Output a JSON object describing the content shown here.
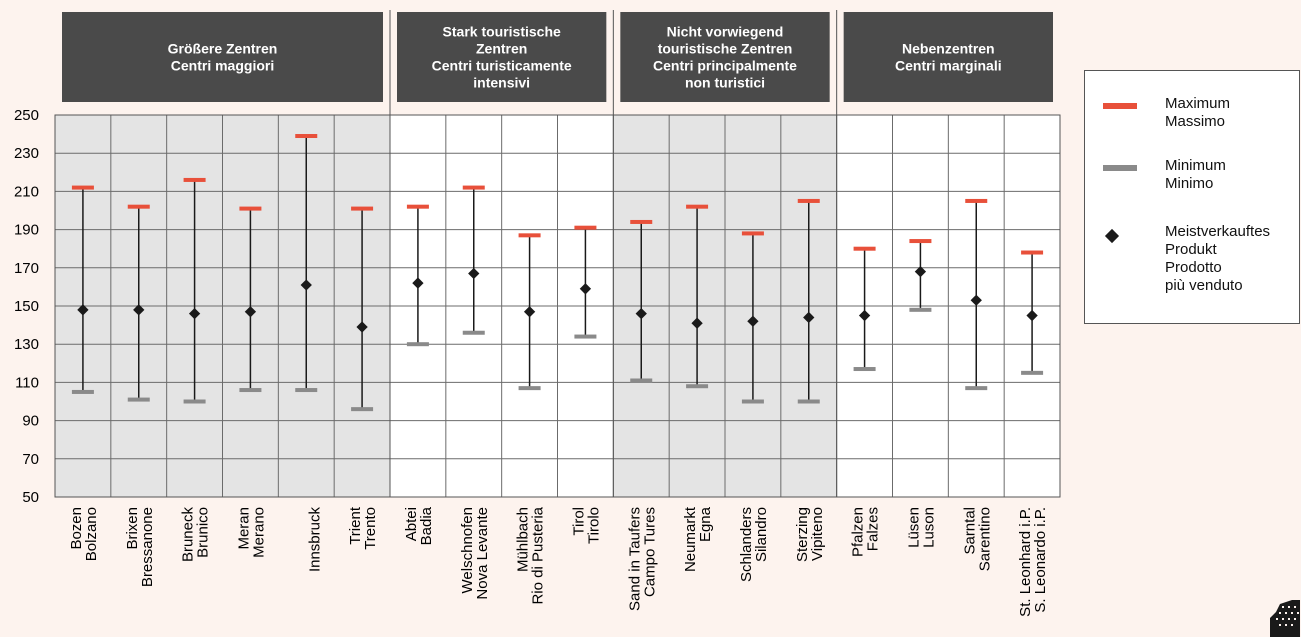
{
  "chart_data": {
    "type": "range",
    "ylim": [
      50,
      250
    ],
    "yticks": [
      50,
      70,
      90,
      110,
      130,
      150,
      170,
      190,
      210,
      230,
      250
    ],
    "groups": [
      {
        "lines": [
          "Größere Zentren",
          "Centri maggiori"
        ],
        "start": 0,
        "count": 6,
        "shaded": true
      },
      {
        "lines": [
          "Stark touristische",
          "Zentren",
          "Centri turisticamente",
          "intensivi"
        ],
        "start": 6,
        "count": 4,
        "shaded": false
      },
      {
        "lines": [
          "Nicht vorwiegend",
          "touristische Zentren",
          "Centri principalmente",
          "non turistici"
        ],
        "start": 10,
        "count": 4,
        "shaded": true
      },
      {
        "lines": [
          "Nebenzentren",
          "Centri marginali"
        ],
        "start": 14,
        "count": 4,
        "shaded": false
      }
    ],
    "categories": [
      {
        "line1": "Bozen",
        "line2": "Bolzano",
        "max": 212,
        "min": 105,
        "mode": 148
      },
      {
        "line1": "Brixen",
        "line2": "Bressanone",
        "max": 202,
        "min": 101,
        "mode": 148
      },
      {
        "line1": "Bruneck",
        "line2": "Brunico",
        "max": 216,
        "min": 100,
        "mode": 146
      },
      {
        "line1": "Meran",
        "line2": "Merano",
        "max": 201,
        "min": 106,
        "mode": 147
      },
      {
        "line1": "",
        "line2": "Innsbruck",
        "max": 239,
        "min": 106,
        "mode": 161
      },
      {
        "line1": "Trient",
        "line2": "Trento",
        "max": 201,
        "min": 96,
        "mode": 139
      },
      {
        "line1": "Abtei",
        "line2": "Badia",
        "max": 202,
        "min": 130,
        "mode": 162
      },
      {
        "line1": "Welschnofen",
        "line2": "Nova Levante",
        "max": 212,
        "min": 136,
        "mode": 167
      },
      {
        "line1": "Mühlbach",
        "line2": "Rio di Pusteria",
        "max": 187,
        "min": 107,
        "mode": 147
      },
      {
        "line1": "Tirol",
        "line2": "Tirolo",
        "max": 191,
        "min": 134,
        "mode": 159
      },
      {
        "line1": "Sand in Taufers",
        "line2": "Campo Tures",
        "max": 194,
        "min": 111,
        "mode": 146
      },
      {
        "line1": "Neumarkt",
        "line2": "Egna",
        "max": 202,
        "min": 108,
        "mode": 141
      },
      {
        "line1": "Schlanders",
        "line2": "Silandro",
        "max": 188,
        "min": 100,
        "mode": 142
      },
      {
        "line1": "Sterzing",
        "line2": "Vipiteno",
        "max": 205,
        "min": 100,
        "mode": 144
      },
      {
        "line1": "Pfalzen",
        "line2": "Falzes",
        "max": 180,
        "min": 117,
        "mode": 145
      },
      {
        "line1": "Lüsen",
        "line2": "Luson",
        "max": 184,
        "min": 148,
        "mode": 168
      },
      {
        "line1": "Sarntal",
        "line2": "Sarentino",
        "max": 205,
        "min": 107,
        "mode": 153
      },
      {
        "line1": "St. Leonhard i.P.",
        "line2": "S. Leonardo i.P.",
        "max": 178,
        "min": 115,
        "mode": 145
      }
    ],
    "colors": {
      "max": "#e8503a",
      "min": "#8a8a8a",
      "mode": "#1a1a1a",
      "header": "#4a4a4a",
      "shade": "#e4e4e4"
    }
  },
  "legend": {
    "max": {
      "line1": "Maximum",
      "line2": "Massimo"
    },
    "min": {
      "line1": "Minimum",
      "line2": "Minimo"
    },
    "mode": {
      "line1": "Meistverkauftes",
      "line2": "Produkt",
      "line3": "Prodotto",
      "line4": "più venduto"
    }
  }
}
